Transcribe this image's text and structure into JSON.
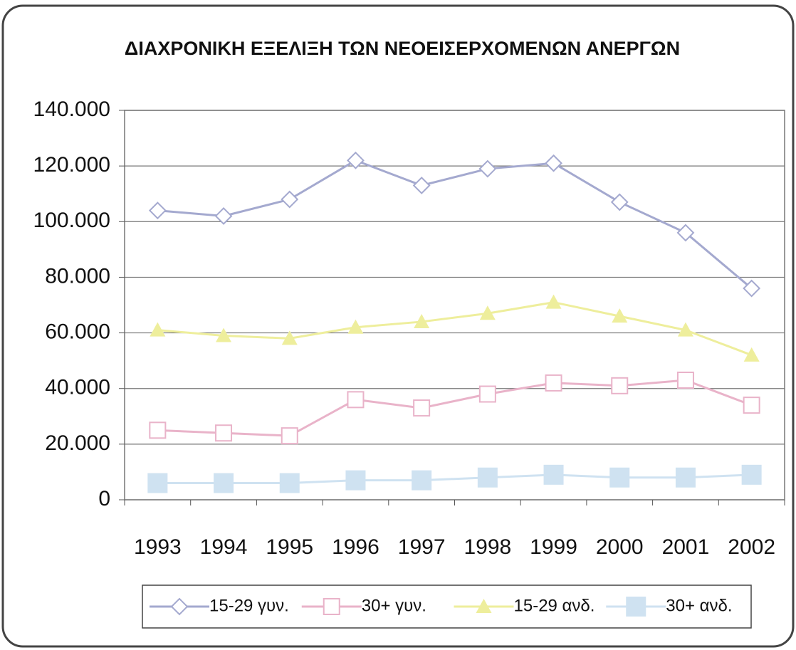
{
  "chart_data": {
    "type": "line",
    "title": "ΔΙΑΧΡΟΝΙΚΗ ΕΞΕΛΙΞΗ ΤΩΝ ΝΕΟΕΙΣΕΡΧΟΜΕΝΩΝ ΑΝΕΡΓΩΝ",
    "categories": [
      "1993",
      "1994",
      "1995",
      "1996",
      "1997",
      "1998",
      "1999",
      "2000",
      "2001",
      "2002"
    ],
    "series": [
      {
        "name": "15-29 γυν.",
        "color": "#a4a9cf",
        "marker": "diamond",
        "values": [
          104000,
          102000,
          108000,
          122000,
          113000,
          119000,
          121000,
          107000,
          96000,
          76000
        ]
      },
      {
        "name": "30+ γυν.",
        "color": "#e9b3c9",
        "marker": "square",
        "values": [
          25000,
          24000,
          23000,
          36000,
          33000,
          38000,
          42000,
          41000,
          43000,
          34000
        ]
      },
      {
        "name": "15-29 ανδ.",
        "color": "#eeee9c",
        "marker": "triangle",
        "values": [
          61000,
          59000,
          58000,
          62000,
          64000,
          67000,
          71000,
          66000,
          61000,
          52000
        ]
      },
      {
        "name": "30+ ανδ.",
        "color": "#cfe2f1",
        "marker": "bigsquare",
        "values": [
          6000,
          6000,
          6000,
          7000,
          7000,
          8000,
          9000,
          8000,
          8000,
          9000
        ]
      }
    ],
    "ylim": [
      0,
      140000
    ],
    "yticks": [
      0,
      {
        "value": 20000,
        "label": "20.000"
      },
      {
        "value": 40000,
        "label": "40.000"
      },
      {
        "value": 60000,
        "label": "60.000"
      },
      {
        "value": 80000,
        "label": "80.000"
      },
      {
        "value": 100000,
        "label": "100.000"
      },
      {
        "value": 120000,
        "label": "120.000"
      },
      {
        "value": 140000,
        "label": "140.000"
      }
    ],
    "grid": true,
    "legend": "bottom"
  }
}
